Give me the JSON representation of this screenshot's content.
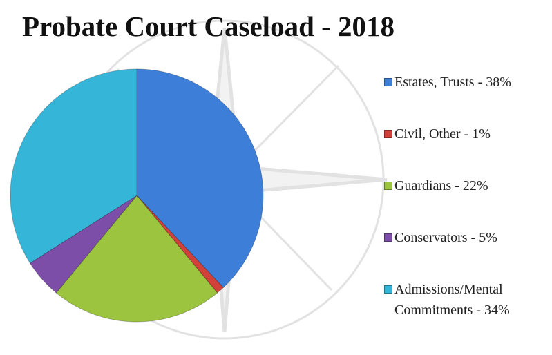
{
  "chart_data": {
    "type": "pie",
    "title": "Probate Court Caseload - 2018",
    "categories": [
      "Estates, Trusts - 38%",
      "Civil, Other - 1%",
      "Guardians - 22%",
      "Conservators - 5%",
      "Admissions/Mental Commitments - 34%"
    ],
    "values": [
      38,
      1,
      22,
      5,
      34
    ],
    "colors": [
      "#3d7fd8",
      "#d2403a",
      "#9cc43f",
      "#7d4ea8",
      "#35b6d8"
    ],
    "legend": "right"
  }
}
